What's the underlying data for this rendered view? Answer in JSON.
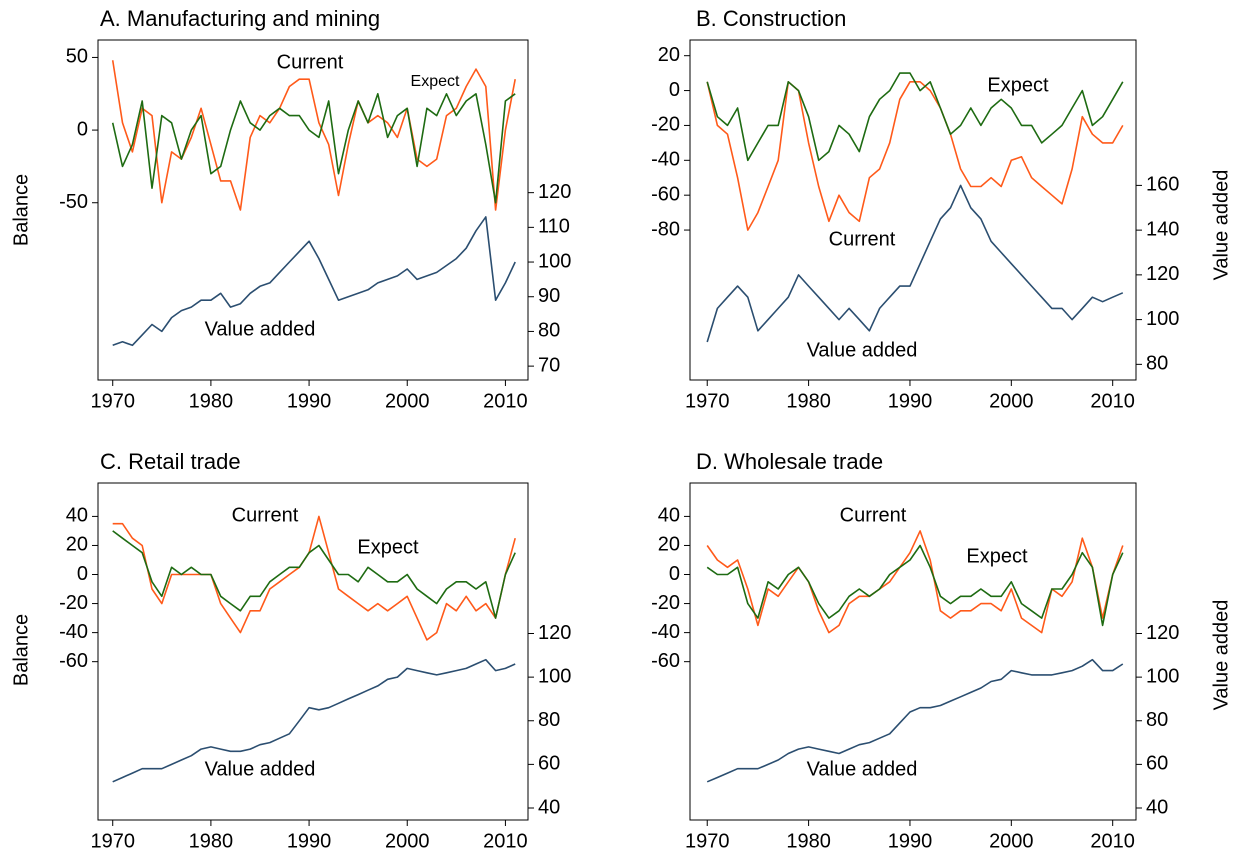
{
  "chart_data": [
    {
      "type": "line",
      "title": "A. Manufacturing and mining",
      "ylabel": "Balance",
      "x": [
        1970,
        1971,
        1972,
        1973,
        1974,
        1975,
        1976,
        1977,
        1978,
        1979,
        1980,
        1981,
        1982,
        1983,
        1984,
        1985,
        1986,
        1987,
        1988,
        1989,
        1990,
        1991,
        1992,
        1993,
        1994,
        1995,
        1996,
        1997,
        1998,
        1999,
        2000,
        2001,
        2002,
        2003,
        2004,
        2005,
        2006,
        2007,
        2008,
        2009,
        2010,
        2011
      ],
      "xlim": [
        1968.5,
        2012.3
      ],
      "xticks": [
        1970,
        1980,
        1990,
        2000,
        2010
      ],
      "ylim": [
        -172,
        62
      ],
      "yticks": [
        -50,
        0,
        50
      ],
      "y2lim": [
        66,
        164
      ],
      "y2ticks": [
        70,
        80,
        90,
        100,
        110,
        120
      ],
      "series": [
        {
          "name": "Current",
          "color": "#ff5a1a",
          "values": [
            48,
            5,
            -15,
            15,
            10,
            -50,
            -15,
            -20,
            -5,
            15,
            -10,
            -35,
            -35,
            -55,
            -5,
            10,
            5,
            15,
            30,
            35,
            35,
            5,
            -10,
            -45,
            -10,
            20,
            5,
            10,
            5,
            -5,
            15,
            -20,
            -25,
            -20,
            10,
            15,
            30,
            42,
            30,
            -55,
            0,
            35
          ]
        },
        {
          "name": "Expect",
          "color": "#1e6b12",
          "values": [
            5,
            -25,
            -10,
            20,
            -40,
            10,
            5,
            -20,
            0,
            10,
            -30,
            -25,
            0,
            20,
            5,
            0,
            10,
            15,
            10,
            10,
            0,
            -5,
            20,
            -30,
            0,
            20,
            5,
            25,
            -5,
            10,
            15,
            -25,
            15,
            10,
            25,
            10,
            20,
            25,
            -10,
            -50,
            20,
            25
          ]
        },
        {
          "name": "Value added",
          "color": "#2b4e70",
          "axis": "y2",
          "values": [
            76,
            77,
            76,
            79,
            82,
            80,
            84,
            86,
            87,
            89,
            89,
            91,
            87,
            88,
            91,
            93,
            94,
            97,
            100,
            103,
            106,
            101,
            95,
            89,
            90,
            91,
            92,
            94,
            95,
            96,
            98,
            95,
            96,
            97,
            99,
            101,
            104,
            109,
            113,
            89,
            94,
            100
          ]
        }
      ]
    },
    {
      "type": "line",
      "title": "B. Construction",
      "y2label": "Value added",
      "x": [
        1970,
        1971,
        1972,
        1973,
        1974,
        1975,
        1976,
        1977,
        1978,
        1979,
        1980,
        1981,
        1982,
        1983,
        1984,
        1985,
        1986,
        1987,
        1988,
        1989,
        1990,
        1991,
        1992,
        1993,
        1994,
        1995,
        1996,
        1997,
        1998,
        1999,
        2000,
        2001,
        2002,
        2003,
        2004,
        2005,
        2006,
        2007,
        2008,
        2009,
        2010,
        2011
      ],
      "xlim": [
        1968.3,
        2012.3
      ],
      "xticks": [
        1970,
        1980,
        1990,
        2000,
        2010
      ],
      "ylim": [
        -166,
        29
      ],
      "yticks": [
        -80,
        -60,
        -40,
        -20,
        0,
        20
      ],
      "y2lim": [
        73,
        225
      ],
      "y2ticks": [
        80,
        100,
        120,
        140,
        160
      ],
      "series": [
        {
          "name": "Current",
          "color": "#ff5a1a",
          "values": [
            5,
            -20,
            -25,
            -50,
            -80,
            -70,
            -55,
            -40,
            5,
            0,
            -30,
            -55,
            -75,
            -60,
            -70,
            -75,
            -50,
            -45,
            -30,
            -5,
            5,
            5,
            0,
            -10,
            -25,
            -45,
            -55,
            -55,
            -50,
            -55,
            -40,
            -38,
            -50,
            -55,
            -60,
            -65,
            -45,
            -15,
            -25,
            -30,
            -30,
            -20
          ]
        },
        {
          "name": "Expect",
          "color": "#1e6b12",
          "values": [
            5,
            -15,
            -20,
            -10,
            -40,
            -30,
            -20,
            -20,
            5,
            0,
            -15,
            -40,
            -35,
            -20,
            -25,
            -35,
            -15,
            -5,
            0,
            10,
            10,
            0,
            5,
            -10,
            -25,
            -20,
            -10,
            -20,
            -10,
            -5,
            -10,
            -20,
            -20,
            -30,
            -25,
            -20,
            -10,
            0,
            -20,
            -15,
            -5,
            5
          ]
        },
        {
          "name": "Value added",
          "color": "#2b4e70",
          "axis": "y2",
          "values": [
            90,
            105,
            110,
            115,
            110,
            95,
            100,
            105,
            110,
            120,
            115,
            110,
            105,
            100,
            105,
            100,
            95,
            105,
            110,
            115,
            115,
            125,
            135,
            145,
            150,
            160,
            150,
            145,
            135,
            130,
            125,
            120,
            115,
            110,
            105,
            105,
            100,
            105,
            110,
            108,
            110,
            112
          ]
        }
      ]
    },
    {
      "type": "line",
      "title": "C. Retail trade",
      "ylabel": "Balance",
      "x": [
        1970,
        1971,
        1972,
        1973,
        1974,
        1975,
        1976,
        1977,
        1978,
        1979,
        1980,
        1981,
        1982,
        1983,
        1984,
        1985,
        1986,
        1987,
        1988,
        1989,
        1990,
        1991,
        1992,
        1993,
        1994,
        1995,
        1996,
        1997,
        1998,
        1999,
        2000,
        2001,
        2002,
        2003,
        2004,
        2005,
        2006,
        2007,
        2008,
        2009,
        2010,
        2011
      ],
      "xlim": [
        1968.5,
        2012.3
      ],
      "xticks": [
        1970,
        1980,
        1990,
        2000,
        2010
      ],
      "ylim": [
        -169,
        63
      ],
      "yticks": [
        -60,
        -40,
        -20,
        0,
        20,
        40
      ],
      "y2lim": [
        34.5,
        189
      ],
      "y2ticks": [
        40,
        60,
        80,
        100,
        120
      ],
      "series": [
        {
          "name": "Current",
          "color": "#ff5a1a",
          "values": [
            35,
            35,
            25,
            20,
            -10,
            -20,
            0,
            0,
            0,
            0,
            0,
            -20,
            -30,
            -40,
            -25,
            -25,
            -10,
            -5,
            0,
            5,
            15,
            40,
            15,
            -10,
            -15,
            -20,
            -25,
            -20,
            -25,
            -20,
            -15,
            -30,
            -45,
            -40,
            -20,
            -25,
            -15,
            -25,
            -20,
            -30,
            0,
            25
          ]
        },
        {
          "name": "Expect",
          "color": "#1e6b12",
          "values": [
            30,
            25,
            20,
            15,
            -5,
            -15,
            5,
            0,
            5,
            0,
            0,
            -15,
            -20,
            -25,
            -15,
            -15,
            -5,
            0,
            5,
            5,
            15,
            20,
            10,
            0,
            0,
            -5,
            5,
            0,
            -5,
            -5,
            0,
            -10,
            -15,
            -20,
            -10,
            -5,
            -5,
            -10,
            -5,
            -30,
            0,
            15
          ]
        },
        {
          "name": "Value added",
          "color": "#2b4e70",
          "axis": "y2",
          "values": [
            52,
            54,
            56,
            58,
            58,
            58,
            60,
            62,
            64,
            67,
            68,
            67,
            66,
            66,
            67,
            69,
            70,
            72,
            74,
            80,
            86,
            85,
            86,
            88,
            90,
            92,
            94,
            96,
            99,
            100,
            104,
            103,
            102,
            101,
            102,
            103,
            104,
            106,
            108,
            103,
            104,
            106
          ]
        }
      ]
    },
    {
      "type": "line",
      "title": "D. Wholesale trade",
      "y2label": "Value added",
      "x": [
        1970,
        1971,
        1972,
        1973,
        1974,
        1975,
        1976,
        1977,
        1978,
        1979,
        1980,
        1981,
        1982,
        1983,
        1984,
        1985,
        1986,
        1987,
        1988,
        1989,
        1990,
        1991,
        1992,
        1993,
        1994,
        1995,
        1996,
        1997,
        1998,
        1999,
        2000,
        2001,
        2002,
        2003,
        2004,
        2005,
        2006,
        2007,
        2008,
        2009,
        2010,
        2011
      ],
      "xlim": [
        1968.3,
        2012.3
      ],
      "xticks": [
        1970,
        1980,
        1990,
        2000,
        2010
      ],
      "ylim": [
        -169,
        63
      ],
      "yticks": [
        -60,
        -40,
        -20,
        0,
        20,
        40
      ],
      "y2lim": [
        34.5,
        189
      ],
      "y2ticks": [
        40,
        60,
        80,
        100,
        120
      ],
      "series": [
        {
          "name": "Current",
          "color": "#ff5a1a",
          "values": [
            20,
            10,
            5,
            10,
            -10,
            -35,
            -10,
            -15,
            -5,
            5,
            -5,
            -25,
            -40,
            -35,
            -20,
            -15,
            -15,
            -10,
            -5,
            5,
            15,
            30,
            10,
            -25,
            -30,
            -25,
            -25,
            -20,
            -20,
            -25,
            -10,
            -30,
            -35,
            -40,
            -10,
            -15,
            -5,
            25,
            5,
            -30,
            0,
            20
          ]
        },
        {
          "name": "Expect",
          "color": "#1e6b12",
          "values": [
            5,
            0,
            0,
            5,
            -20,
            -30,
            -5,
            -10,
            0,
            5,
            -5,
            -20,
            -30,
            -25,
            -15,
            -10,
            -15,
            -10,
            0,
            5,
            10,
            20,
            5,
            -15,
            -20,
            -15,
            -15,
            -10,
            -15,
            -15,
            -5,
            -20,
            -25,
            -30,
            -10,
            -10,
            0,
            15,
            5,
            -35,
            0,
            15
          ]
        },
        {
          "name": "Value added",
          "color": "#2b4e70",
          "axis": "y2",
          "values": [
            52,
            54,
            56,
            58,
            58,
            58,
            60,
            62,
            65,
            67,
            68,
            67,
            66,
            65,
            67,
            69,
            70,
            72,
            74,
            79,
            84,
            86,
            86,
            87,
            89,
            91,
            93,
            95,
            98,
            99,
            103,
            102,
            101,
            101,
            101,
            102,
            103,
            105,
            108,
            103,
            103,
            106
          ]
        }
      ]
    }
  ]
}
